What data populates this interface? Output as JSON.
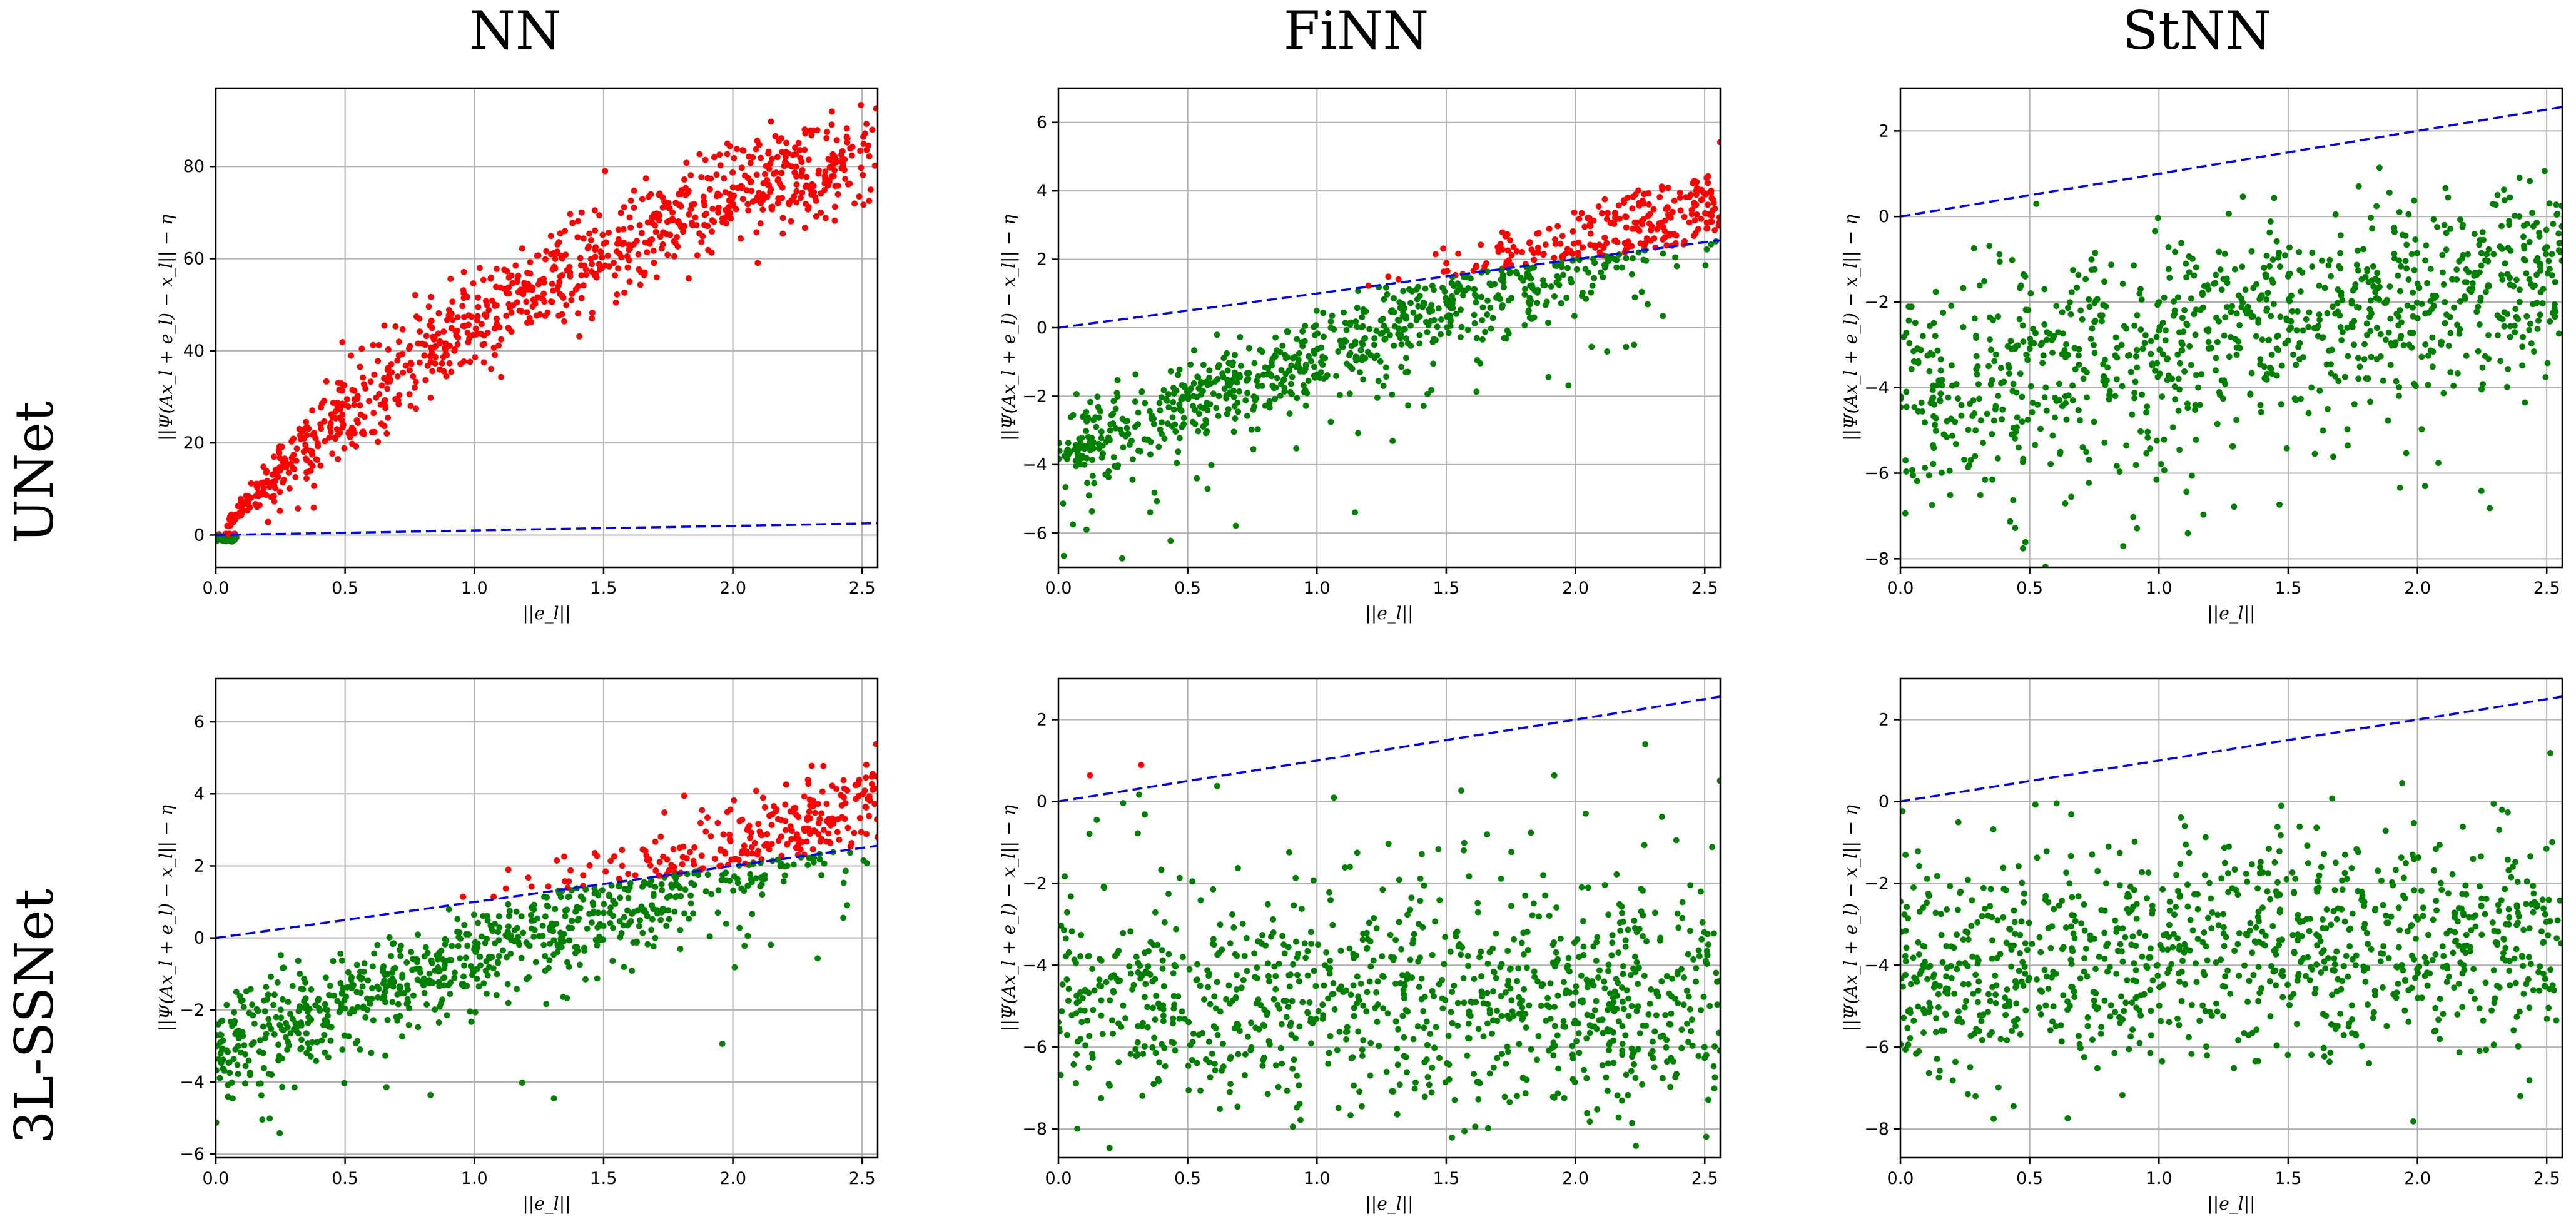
{
  "figure": {
    "column_titles": [
      "NN",
      "FiNN",
      "StNN"
    ],
    "row_titles": [
      "UNet",
      "3L-SSNet"
    ]
  },
  "colors": {
    "violating": "#ff0000",
    "satisfying": "#008000",
    "bound": "#0000ff"
  },
  "chart_data": [
    {
      "type": "scatter",
      "row": 0,
      "col": 0,
      "xlabel": "||e_l||",
      "ylabel": "||Ψ(Ax_l + e_l) − x_l|| − η",
      "xlim": [
        0,
        2.56
      ],
      "ylim": [
        -7,
        97
      ],
      "xticks": [
        0.0,
        0.5,
        1.0,
        1.5,
        2.0,
        2.5
      ],
      "yticks": [
        0,
        20,
        40,
        60,
        80
      ],
      "grid": true,
      "bound_line": {
        "x": [
          0,
          2.56
        ],
        "y": [
          0,
          2.56
        ]
      },
      "cloud": {
        "model": "concave",
        "amp": 110,
        "rate": 0.55,
        "noise": 5.5,
        "n": 1000
      }
    },
    {
      "type": "scatter",
      "row": 0,
      "col": 1,
      "xlabel": "||e_l||",
      "ylabel": "||Ψ(Ax_l + e_l) − x_l|| − η",
      "xlim": [
        0,
        2.56
      ],
      "ylim": [
        -7,
        7
      ],
      "xticks": [
        0.0,
        0.5,
        1.0,
        1.5,
        2.0,
        2.5
      ],
      "yticks": [
        -6,
        -4,
        -2,
        0,
        2,
        4,
        6
      ],
      "grid": true,
      "bound_line": {
        "x": [
          0,
          2.56
        ],
        "y": [
          0,
          2.56
        ]
      },
      "cloud": {
        "model": "linear",
        "a": -3.5,
        "b": 2.8,
        "noise": 0.7,
        "lowtail": 1.6,
        "n": 1000
      }
    },
    {
      "type": "scatter",
      "row": 0,
      "col": 2,
      "xlabel": "||e_l||",
      "ylabel": "||Ψ(Ax_l + e_l) − x_l|| − η",
      "xlim": [
        0,
        2.56
      ],
      "ylim": [
        -8.2,
        3
      ],
      "xticks": [
        0.0,
        0.5,
        1.0,
        1.5,
        2.0,
        2.5
      ],
      "yticks": [
        -8,
        -6,
        -4,
        -2,
        0,
        2
      ],
      "grid": true,
      "bound_line": {
        "x": [
          0,
          2.56
        ],
        "y": [
          0,
          2.56
        ]
      },
      "cloud": {
        "model": "linear",
        "a": -4.0,
        "b": 1.1,
        "noise": 1.2,
        "lowtail": 2.0,
        "n": 1000
      }
    },
    {
      "type": "scatter",
      "row": 1,
      "col": 0,
      "xlabel": "||e_l||",
      "ylabel": "||Ψ(Ax_l + e_l) − x_l|| − η",
      "xlim": [
        0,
        2.56
      ],
      "ylim": [
        -6.1,
        7.2
      ],
      "xticks": [
        0.0,
        0.5,
        1.0,
        1.5,
        2.0,
        2.5
      ],
      "yticks": [
        -6,
        -4,
        -2,
        0,
        2,
        4,
        6
      ],
      "grid": true,
      "bound_line": {
        "x": [
          0,
          2.56
        ],
        "y": [
          0,
          2.56
        ]
      },
      "cloud": {
        "model": "linear",
        "a": -3.0,
        "b": 2.6,
        "noise": 0.7,
        "lowtail": 1.4,
        "n": 1000
      }
    },
    {
      "type": "scatter",
      "row": 1,
      "col": 1,
      "xlabel": "||e_l||",
      "ylabel": "||Ψ(Ax_l + e_l) − x_l|| − η",
      "xlim": [
        0,
        2.56
      ],
      "ylim": [
        -8.7,
        3
      ],
      "xticks": [
        0.0,
        0.5,
        1.0,
        1.5,
        2.0,
        2.5
      ],
      "yticks": [
        -8,
        -6,
        -4,
        -2,
        0,
        2
      ],
      "grid": true,
      "bound_line": {
        "x": [
          0,
          2.56
        ],
        "y": [
          0,
          2.56
        ]
      },
      "cloud": {
        "model": "band",
        "mean": -4.9,
        "noise": 1.3,
        "n": 1000
      }
    },
    {
      "type": "scatter",
      "row": 1,
      "col": 2,
      "xlabel": "||e_l||",
      "ylabel": "||Ψ(Ax_l + e_l) − x_l|| − η",
      "xlim": [
        0,
        2.56
      ],
      "ylim": [
        -8.7,
        3
      ],
      "xticks": [
        0.0,
        0.5,
        1.0,
        1.5,
        2.0,
        2.5
      ],
      "yticks": [
        -8,
        -6,
        -4,
        -2,
        0,
        2
      ],
      "grid": true,
      "bound_line": {
        "x": [
          0,
          2.56
        ],
        "y": [
          0,
          2.56
        ]
      },
      "cloud": {
        "model": "linear",
        "a": -4.0,
        "b": 0.3,
        "noise": 1.4,
        "n": 1000
      }
    }
  ]
}
